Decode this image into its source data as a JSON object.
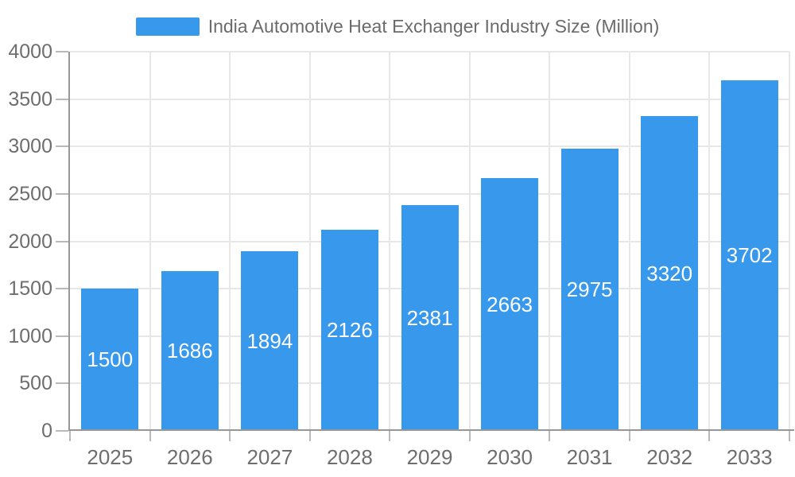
{
  "legend": {
    "label": "India Automotive Heat Exchanger Industry Size (Million)"
  },
  "colors": {
    "bar": "#3898EC",
    "grid": "#E7E7E7",
    "axis_line": "#979797",
    "tick_mark": "#B9B9B9",
    "tick_label": "#6E6E6E",
    "legend_text": "#6B6B6B",
    "data_label": "#FFFFFF",
    "background": "#FFFFFF"
  },
  "chart_data": {
    "type": "bar",
    "title": "India Automotive Heat Exchanger Industry Size (Million)",
    "categories": [
      "2025",
      "2026",
      "2027",
      "2028",
      "2029",
      "2030",
      "2031",
      "2032",
      "2033"
    ],
    "values": [
      1500,
      1686,
      1894,
      2126,
      2381,
      2663,
      2975,
      3320,
      3702
    ],
    "xlabel": "",
    "ylabel": "",
    "ylim": [
      0,
      4000
    ],
    "yticks": [
      0,
      500,
      1000,
      1500,
      2000,
      2500,
      3000,
      3500,
      4000
    ],
    "grid": true,
    "legend_position": "top",
    "bar_labels": "centered-white"
  }
}
